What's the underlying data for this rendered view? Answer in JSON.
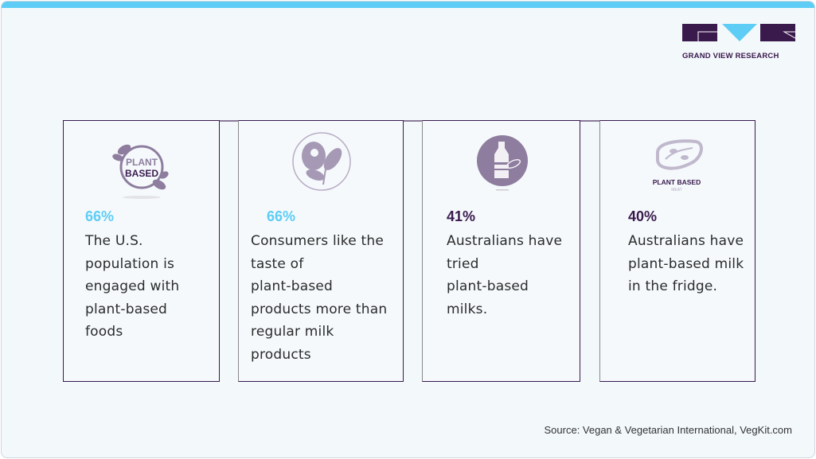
{
  "brand": {
    "name": "GRAND VIEW RESEARCH",
    "colors": {
      "accent": "#5dcdf5",
      "dark": "#3a1a4d",
      "icon": "#8e7d9e"
    }
  },
  "cards": [
    {
      "icon": "plant-based-badge-icon",
      "icon_text": [
        "PLANT",
        "BASED"
      ],
      "stat": "66%",
      "stat_color": "#5dcdf5",
      "lines": [
        "The U.S.",
        "population is",
        "engaged with",
        "plant-based",
        "foods"
      ]
    },
    {
      "icon": "meat-leaf-icon",
      "stat": "66%",
      "stat_color": "#5dcdf5",
      "lines": [
        "Consumers like the",
        "taste of",
        "plant-based",
        "products more than",
        "regular milk",
        "products"
      ]
    },
    {
      "icon": "milk-bottle-icon",
      "stat": "41%",
      "stat_color": "#3a1a4d",
      "lines": [
        "Australians have",
        "tried",
        "plant-based",
        "milks."
      ]
    },
    {
      "icon": "plant-based-meat-icon",
      "icon_text": [
        "PLANT BASED",
        "MEAT"
      ],
      "stat": "40%",
      "stat_color": "#3a1a4d",
      "lines": [
        "Australians have",
        "plant-based milk",
        "in the fridge."
      ]
    }
  ],
  "source": "Source: Vegan & Vegetarian International, VegKit.com"
}
